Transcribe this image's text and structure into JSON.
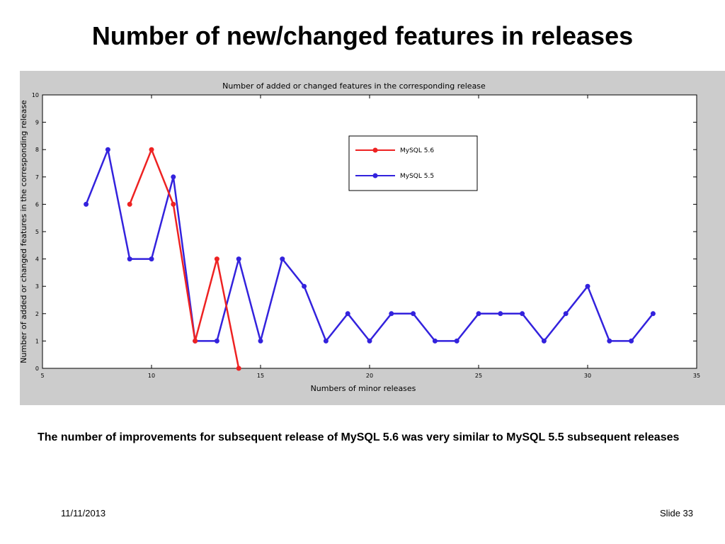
{
  "slide": {
    "title": "Number of new/changed features in releases",
    "caption": "The number of improvements for subsequent release of MySQL 5.6 was very similar to MySQL 5.5 subsequent releases",
    "date": "11/11/2013",
    "slide_number": "Slide 33"
  },
  "chart_data": {
    "type": "line",
    "title": "Number of added or changed features in the corresponding release",
    "xlabel": "Numbers of minor releases",
    "ylabel": "Number of added or changed features in the corresponding release",
    "xlim": [
      5,
      35
    ],
    "ylim": [
      0,
      10
    ],
    "xticks": [
      5,
      10,
      15,
      20,
      25,
      30,
      35
    ],
    "yticks": [
      0,
      1,
      2,
      3,
      4,
      5,
      6,
      7,
      8,
      9,
      10
    ],
    "grid": false,
    "legend_position": "top-right",
    "series": [
      {
        "name": "MySQL 5.6",
        "color": "#ee2222",
        "x": [
          9,
          10,
          11,
          12,
          13,
          14
        ],
        "y": [
          6,
          8,
          6,
          1,
          4,
          0
        ]
      },
      {
        "name": "MySQL 5.5",
        "color": "#3322dd",
        "x": [
          7,
          8,
          9,
          10,
          11,
          12,
          13,
          14,
          15,
          16,
          17,
          18,
          19,
          20,
          21,
          22,
          23,
          24,
          25,
          26,
          27,
          28,
          29,
          30,
          31,
          32,
          33
        ],
        "y": [
          6,
          8,
          4,
          4,
          7,
          1,
          1,
          4,
          1,
          4,
          3,
          1,
          2,
          1,
          2,
          2,
          1,
          1,
          2,
          2,
          2,
          1,
          2,
          3,
          1,
          1,
          2
        ]
      }
    ]
  }
}
